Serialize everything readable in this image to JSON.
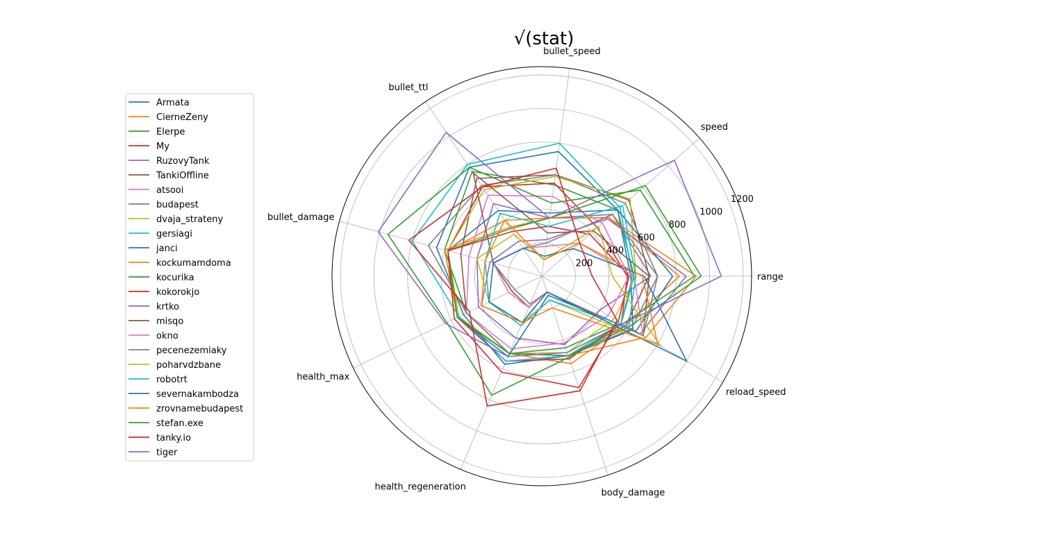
{
  "chart_data": {
    "type": "radar",
    "title": "√(stat)",
    "axes": [
      "range",
      "speed",
      "bullet_speed",
      "bullet_ttl",
      "bullet_damage",
      "health_max",
      "health_regeneration",
      "body_damage",
      "reload_speed"
    ],
    "radial_ticks": [
      200,
      400,
      600,
      800,
      1000,
      1200
    ],
    "rlim": [
      0,
      1250
    ],
    "grid": true,
    "legend_position": "left",
    "series": [
      {
        "name": "Armata",
        "color": "#1f77b4",
        "values": [
          530,
          600,
          750,
          780,
          650,
          520,
          570,
          500,
          630
        ]
      },
      {
        "name": "CierneZeny",
        "color": "#ff7f0e",
        "values": [
          820,
          530,
          350,
          400,
          580,
          560,
          500,
          550,
          580
        ]
      },
      {
        "name": "Elerpe",
        "color": "#2ca02c",
        "values": [
          550,
          600,
          550,
          750,
          600,
          500,
          500,
          450,
          550
        ]
      },
      {
        "name": "My",
        "color": "#d62728",
        "values": [
          510,
          440,
          560,
          640,
          580,
          560,
          550,
          520,
          550
        ]
      },
      {
        "name": "RuzovyTank",
        "color": "#9467bd",
        "values": [
          650,
          560,
          350,
          520,
          400,
          420,
          400,
          430,
          400
        ]
      },
      {
        "name": "TankiOffline",
        "color": "#8c564b",
        "values": [
          640,
          690,
          610,
          700,
          500,
          500,
          500,
          500,
          580
        ]
      },
      {
        "name": "atsooi",
        "color": "#e377c2",
        "values": [
          520,
          480,
          480,
          580,
          450,
          500,
          470,
          420,
          460
        ]
      },
      {
        "name": "budapest",
        "color": "#7f7f7f",
        "values": [
          690,
          660,
          610,
          650,
          700,
          500,
          500,
          500,
          620
        ]
      },
      {
        "name": "dvaja_strateny",
        "color": "#bcbd22",
        "values": [
          560,
          700,
          600,
          620,
          580,
          550,
          500,
          480,
          500
        ]
      },
      {
        "name": "gersiagi",
        "color": "#17becf",
        "values": [
          540,
          620,
          800,
          800,
          800,
          550,
          550,
          500,
          550
        ]
      },
      {
        "name": "janci",
        "color": "#1f77b4",
        "values": [
          780,
          600,
          380,
          470,
          580,
          560,
          520,
          120,
          650
        ]
      },
      {
        "name": "kockumamdoma",
        "color": "#ff7f0e",
        "values": [
          920,
          530,
          350,
          350,
          600,
          560,
          500,
          500,
          720
        ]
      },
      {
        "name": "kocurika",
        "color": "#2ca02c",
        "values": [
          950,
          820,
          350,
          340,
          580,
          560,
          500,
          500,
          600
        ]
      },
      {
        "name": "kokorokjo",
        "color": "#d62728",
        "values": [
          520,
          380,
          300,
          320,
          580,
          580,
          620,
          700,
          530
        ]
      },
      {
        "name": "krtko",
        "color": "#9467bd",
        "values": [
          860,
          520,
          220,
          250,
          320,
          400,
          300,
          100,
          680
        ]
      },
      {
        "name": "misqo",
        "color": "#8c564b",
        "values": [
          640,
          410,
          260,
          740,
          300,
          200,
          200,
          100,
          700
        ]
      },
      {
        "name": "okno",
        "color": "#e377c2",
        "values": [
          550,
          300,
          180,
          200,
          300,
          220,
          200,
          100,
          700
        ]
      },
      {
        "name": "pecenezemiaky",
        "color": "#7f7f7f",
        "values": [
          690,
          560,
          200,
          200,
          300,
          180,
          180,
          100,
          700
        ]
      },
      {
        "name": "poharvdzbane",
        "color": "#bcbd22",
        "values": [
          420,
          450,
          100,
          300,
          400,
          350,
          300,
          150,
          820
        ]
      },
      {
        "name": "robotrt",
        "color": "#17becf",
        "values": [
          560,
          640,
          300,
          450,
          350,
          350,
          320,
          150,
          600
        ]
      },
      {
        "name": "severnakambodza",
        "color": "#1f77b4",
        "values": [
          610,
          250,
          120,
          200,
          300,
          350,
          300,
          100,
          1000
        ]
      },
      {
        "name": "zrovnamebudapest",
        "color": "#ff7f0e",
        "values": [
          600,
          300,
          100,
          400,
          350,
          400,
          300,
          200,
          800
        ]
      },
      {
        "name": "stefan.exe",
        "color": "#2ca02c",
        "values": [
          910,
          780,
          440,
          780,
          950,
          630,
          770,
          510,
          560
        ]
      },
      {
        "name": "tanky.io",
        "color": "#d62728",
        "values": [
          300,
          300,
          650,
          640,
          820,
          480,
          840,
          720,
          520
        ]
      },
      {
        "name": "tiger",
        "color": "#9467bd",
        "values": [
          1070,
          1050,
          350,
          1030,
          1010,
          640,
          520,
          480,
          560
        ]
      }
    ]
  }
}
